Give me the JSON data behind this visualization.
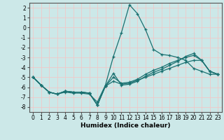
{
  "xlabel": "Humidex (Indice chaleur)",
  "bg_color": "#cce8e8",
  "grid_color": "#f0c8c8",
  "line_color": "#1a7070",
  "xlim": [
    -0.5,
    23.5
  ],
  "ylim": [
    -8.5,
    2.5
  ],
  "xticks": [
    0,
    1,
    2,
    3,
    4,
    5,
    6,
    7,
    8,
    9,
    10,
    11,
    12,
    13,
    14,
    15,
    16,
    17,
    18,
    19,
    20,
    21,
    22,
    23
  ],
  "yticks": [
    -8,
    -7,
    -6,
    -5,
    -4,
    -3,
    -2,
    -1,
    0,
    1,
    2
  ],
  "line1_x": [
    0,
    1,
    2,
    3,
    4,
    5,
    6,
    7,
    8,
    9,
    10,
    11,
    12,
    13,
    14,
    15,
    16,
    17,
    18,
    19,
    20,
    21,
    22,
    23
  ],
  "line1_y": [
    -5.0,
    -5.8,
    -6.5,
    -6.7,
    -6.5,
    -6.6,
    -6.6,
    -6.7,
    -7.5,
    -5.8,
    -2.9,
    -0.5,
    2.3,
    1.4,
    -0.2,
    -2.2,
    -2.7,
    -2.8,
    -3.0,
    -3.3,
    -4.1,
    -4.4,
    -4.7,
    -4.7
  ],
  "line2_x": [
    0,
    1,
    2,
    3,
    4,
    5,
    6,
    7,
    8,
    9,
    10,
    11,
    12,
    13,
    14,
    15,
    16,
    17,
    18,
    19,
    20,
    21,
    22,
    23
  ],
  "line2_y": [
    -5.0,
    -5.8,
    -6.5,
    -6.7,
    -6.4,
    -6.5,
    -6.5,
    -6.6,
    -7.8,
    -5.9,
    -4.6,
    -5.8,
    -5.7,
    -5.4,
    -4.9,
    -4.5,
    -4.2,
    -3.8,
    -3.4,
    -2.9,
    -2.6,
    -3.3,
    -4.4,
    -4.7
  ],
  "line3_x": [
    0,
    1,
    2,
    3,
    4,
    5,
    6,
    7,
    8,
    9,
    10,
    11,
    12,
    13,
    14,
    15,
    16,
    17,
    18,
    19,
    20,
    21,
    22,
    23
  ],
  "line3_y": [
    -5.0,
    -5.8,
    -6.5,
    -6.7,
    -6.4,
    -6.5,
    -6.5,
    -6.6,
    -7.8,
    -5.9,
    -5.0,
    -5.6,
    -5.5,
    -5.2,
    -4.7,
    -4.3,
    -4.0,
    -3.6,
    -3.3,
    -3.0,
    -2.8,
    -3.3,
    -4.4,
    -4.7
  ],
  "line4_x": [
    0,
    1,
    2,
    3,
    4,
    5,
    6,
    7,
    8,
    9,
    10,
    11,
    12,
    13,
    14,
    15,
    16,
    17,
    18,
    19,
    20,
    21,
    22,
    23
  ],
  "line4_y": [
    -5.0,
    -5.8,
    -6.5,
    -6.7,
    -6.4,
    -6.5,
    -6.5,
    -6.6,
    -7.8,
    -5.9,
    -5.4,
    -5.7,
    -5.6,
    -5.3,
    -5.0,
    -4.7,
    -4.4,
    -4.1,
    -3.8,
    -3.5,
    -3.3,
    -3.3,
    -4.4,
    -4.7
  ]
}
